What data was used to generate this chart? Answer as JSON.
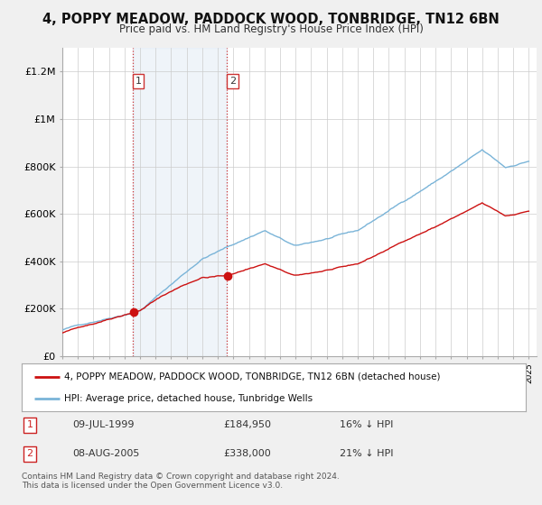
{
  "title": "4, POPPY MEADOW, PADDOCK WOOD, TONBRIDGE, TN12 6BN",
  "subtitle": "Price paid vs. HM Land Registry's House Price Index (HPI)",
  "ylim": [
    0,
    1300000
  ],
  "yticks": [
    0,
    200000,
    400000,
    600000,
    800000,
    1000000,
    1200000
  ],
  "ytick_labels": [
    "£0",
    "£200K",
    "£400K",
    "£600K",
    "£800K",
    "£1M",
    "£1.2M"
  ],
  "hpi_color": "#7ab4d8",
  "price_color": "#cc1111",
  "marker1_year": 1999.52,
  "marker1_value": 184950,
  "marker2_year": 2005.6,
  "marker2_value": 338000,
  "legend_label_red": "4, POPPY MEADOW, PADDOCK WOOD, TONBRIDGE, TN12 6BN (detached house)",
  "legend_label_blue": "HPI: Average price, detached house, Tunbridge Wells",
  "annotation1": [
    "1",
    "09-JUL-1999",
    "£184,950",
    "16% ↓ HPI"
  ],
  "annotation2": [
    "2",
    "08-AUG-2005",
    "£338,000",
    "21% ↓ HPI"
  ],
  "footnote": "Contains HM Land Registry data © Crown copyright and database right 2024.\nThis data is licensed under the Open Government Licence v3.0.",
  "background_color": "#f0f0f0",
  "plot_bg_color": "#ffffff",
  "grid_color": "#cccccc",
  "shade_color": "#ddeeff",
  "title_fontsize": 10.5,
  "subtitle_fontsize": 8.5
}
